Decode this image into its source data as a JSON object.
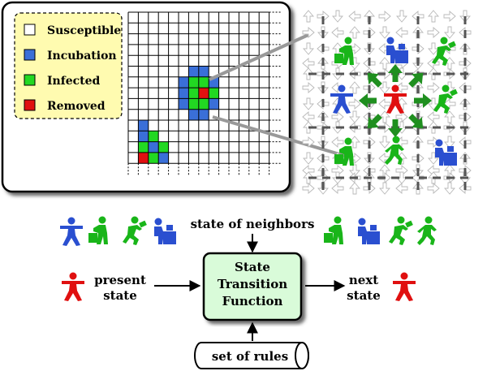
{
  "legend": {
    "items": [
      {
        "label": "Susceptible",
        "color": "#ffffff"
      },
      {
        "label": "Incubation",
        "color": "#3a6fd8"
      },
      {
        "label": "Infected",
        "color": "#22d822"
      },
      {
        "label": "Removed",
        "color": "#e01010"
      }
    ]
  },
  "grid": {
    "rows": 14,
    "cols": 14,
    "cells": [
      {
        "r": 5,
        "c": 6,
        "state": 1
      },
      {
        "r": 5,
        "c": 7,
        "state": 1
      },
      {
        "r": 6,
        "c": 5,
        "state": 1
      },
      {
        "r": 6,
        "c": 6,
        "state": 2
      },
      {
        "r": 6,
        "c": 7,
        "state": 2
      },
      {
        "r": 6,
        "c": 8,
        "state": 1
      },
      {
        "r": 7,
        "c": 5,
        "state": 1
      },
      {
        "r": 7,
        "c": 6,
        "state": 2
      },
      {
        "r": 7,
        "c": 7,
        "state": 3
      },
      {
        "r": 7,
        "c": 8,
        "state": 2
      },
      {
        "r": 8,
        "c": 5,
        "state": 1
      },
      {
        "r": 8,
        "c": 6,
        "state": 2
      },
      {
        "r": 8,
        "c": 7,
        "state": 2
      },
      {
        "r": 8,
        "c": 8,
        "state": 1
      },
      {
        "r": 9,
        "c": 6,
        "state": 1
      },
      {
        "r": 9,
        "c": 7,
        "state": 1
      },
      {
        "r": 10,
        "c": 1,
        "state": 1
      },
      {
        "r": 11,
        "c": 1,
        "state": 1
      },
      {
        "r": 11,
        "c": 2,
        "state": 2
      },
      {
        "r": 12,
        "c": 1,
        "state": 2
      },
      {
        "r": 12,
        "c": 2,
        "state": 1
      },
      {
        "r": 12,
        "c": 3,
        "state": 2
      },
      {
        "r": 13,
        "c": 1,
        "state": 3
      },
      {
        "r": 13,
        "c": 2,
        "state": 2
      },
      {
        "r": 13,
        "c": 3,
        "state": 1
      }
    ]
  },
  "flow": {
    "neighbors_label": "state of neighbors",
    "present_label": [
      "present",
      "state"
    ],
    "function_label": [
      "State",
      "Transition",
      "Function"
    ],
    "next_label": [
      "next",
      "state"
    ],
    "rules_label": "set of rules"
  },
  "colors": {
    "incubation": "#2a4fd0",
    "infected": "#19b519",
    "removed": "#e01010",
    "legend_bg": "#fffbb0",
    "function_bg": "#d9fbd9",
    "arrow_green": "#1f8f1f"
  }
}
